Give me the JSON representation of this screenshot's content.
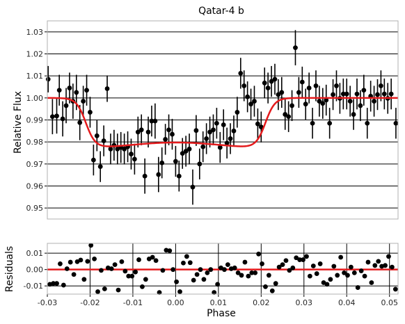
{
  "chart_data": [
    {
      "type": "scatter",
      "title": "Qatar-4 b",
      "xlabel": "",
      "ylabel": "Relative Flux",
      "xlim": [
        -0.03,
        0.052
      ],
      "ylim": [
        0.945,
        1.035
      ],
      "yticks": [
        0.95,
        0.96,
        0.97,
        0.98,
        0.99,
        1.0,
        1.01,
        1.02,
        1.03
      ],
      "ytick_labels": [
        "0.95",
        "0.96",
        "0.97",
        "0.98",
        "0.99",
        "1.00",
        "1.01",
        "1.02",
        "1.03"
      ],
      "grid": "horizontal",
      "points": [
        [
          -0.0298,
          1.0085,
          0.006
        ],
        [
          -0.0288,
          0.9915,
          0.008
        ],
        [
          -0.0278,
          0.9918,
          0.008
        ],
        [
          -0.0272,
          1.0035,
          0.007
        ],
        [
          -0.0264,
          0.9905,
          0.008
        ],
        [
          -0.0256,
          0.9965,
          0.008
        ],
        [
          -0.0248,
          1.0045,
          0.007
        ],
        [
          -0.024,
          0.9985,
          0.008
        ],
        [
          -0.0232,
          1.0025,
          0.008
        ],
        [
          -0.0224,
          0.9888,
          0.008
        ],
        [
          -0.0216,
          0.9985,
          0.007
        ],
        [
          -0.0208,
          1.0035,
          0.007
        ],
        [
          -0.02,
          0.9935,
          0.007
        ],
        [
          -0.0192,
          0.9718,
          0.007
        ],
        [
          -0.0184,
          0.9828,
          0.007
        ],
        [
          -0.0176,
          0.9688,
          0.007
        ],
        [
          -0.0168,
          0.9805,
          0.007
        ],
        [
          -0.016,
          1.0042,
          0.006
        ],
        [
          -0.0152,
          0.9768,
          0.007
        ],
        [
          -0.0144,
          0.9785,
          0.007
        ],
        [
          -0.0136,
          0.9768,
          0.007
        ],
        [
          -0.0128,
          0.9775,
          0.007
        ],
        [
          -0.012,
          0.9768,
          0.007
        ],
        [
          -0.0112,
          0.9778,
          0.007
        ],
        [
          -0.0104,
          0.9745,
          0.007
        ],
        [
          -0.0096,
          0.9722,
          0.007
        ],
        [
          -0.0088,
          0.9845,
          0.007
        ],
        [
          -0.008,
          0.9855,
          0.007
        ],
        [
          -0.0072,
          0.9645,
          0.008
        ],
        [
          -0.0064,
          0.9845,
          0.007
        ],
        [
          -0.0056,
          0.9895,
          0.007
        ],
        [
          -0.0048,
          0.9895,
          0.008
        ],
        [
          -0.004,
          0.9652,
          0.008
        ],
        [
          -0.0032,
          0.9705,
          0.007
        ],
        [
          -0.0024,
          0.9812,
          0.007
        ],
        [
          -0.0016,
          0.9855,
          0.007
        ],
        [
          -0.0008,
          0.9835,
          0.007
        ],
        [
          0.0,
          0.9712,
          0.007
        ],
        [
          0.0008,
          0.9645,
          0.007
        ],
        [
          0.0016,
          0.9748,
          0.007
        ],
        [
          0.0024,
          0.9758,
          0.007
        ],
        [
          0.0032,
          0.9768,
          0.007
        ],
        [
          0.004,
          0.9595,
          0.008
        ],
        [
          0.0048,
          0.9852,
          0.007
        ],
        [
          0.0056,
          0.97,
          0.007
        ],
        [
          0.0064,
          0.9778,
          0.007
        ],
        [
          0.0072,
          0.9815,
          0.007
        ],
        [
          0.008,
          0.9845,
          0.007
        ],
        [
          0.0088,
          0.9855,
          0.007
        ],
        [
          0.0096,
          0.9885,
          0.007
        ],
        [
          0.0104,
          0.9775,
          0.007
        ],
        [
          0.0112,
          0.9878,
          0.007
        ],
        [
          0.012,
          0.9795,
          0.007
        ],
        [
          0.0128,
          0.9815,
          0.007
        ],
        [
          0.0136,
          0.985,
          0.007
        ],
        [
          0.0144,
          0.9935,
          0.007
        ],
        [
          0.0152,
          1.0112,
          0.007
        ],
        [
          0.016,
          1.0055,
          0.007
        ],
        [
          0.0168,
          1.0005,
          0.007
        ],
        [
          0.0176,
          0.9972,
          0.007
        ],
        [
          0.0184,
          0.9985,
          0.007
        ],
        [
          0.0192,
          0.9882,
          0.007
        ],
        [
          0.02,
          0.9868,
          0.007
        ],
        [
          0.0208,
          1.0068,
          0.007
        ],
        [
          0.0216,
          1.0045,
          0.007
        ],
        [
          0.0224,
          1.0075,
          0.007
        ],
        [
          0.0232,
          1.0085,
          0.007
        ],
        [
          0.024,
          1.0015,
          0.007
        ],
        [
          0.0248,
          1.0025,
          0.007
        ],
        [
          0.0256,
          0.9925,
          0.007
        ],
        [
          0.0264,
          0.9915,
          0.007
        ],
        [
          0.0272,
          0.9965,
          0.007
        ],
        [
          0.028,
          1.0228,
          0.008
        ],
        [
          0.0288,
          1.0025,
          0.007
        ],
        [
          0.0296,
          1.0072,
          0.007
        ],
        [
          0.0304,
          0.9972,
          0.007
        ],
        [
          0.0312,
          1.0045,
          0.007
        ],
        [
          0.032,
          0.9885,
          0.007
        ],
        [
          0.0328,
          1.0055,
          0.007
        ],
        [
          0.0336,
          0.9985,
          0.007
        ],
        [
          0.0344,
          0.9975,
          0.007
        ],
        [
          0.0352,
          0.999,
          0.007
        ],
        [
          0.036,
          0.9885,
          0.007
        ],
        [
          0.0368,
          1.0015,
          0.007
        ],
        [
          0.0376,
          1.0055,
          0.007
        ],
        [
          0.0384,
          0.9998,
          0.007
        ],
        [
          0.0392,
          1.0018,
          0.007
        ],
        [
          0.04,
          1.0018,
          0.007
        ],
        [
          0.0408,
          0.9985,
          0.007
        ],
        [
          0.0416,
          0.9925,
          0.007
        ],
        [
          0.0424,
          1.0018,
          0.007
        ],
        [
          0.0432,
          0.9965,
          0.007
        ],
        [
          0.044,
          1.0035,
          0.007
        ],
        [
          0.0448,
          0.9885,
          0.007
        ],
        [
          0.0456,
          1.0008,
          0.007
        ],
        [
          0.0464,
          0.9985,
          0.007
        ],
        [
          0.0472,
          1.0015,
          0.007
        ],
        [
          0.048,
          1.0055,
          0.007
        ],
        [
          0.0488,
          1.0018,
          0.007
        ],
        [
          0.0496,
          0.9998,
          0.007
        ],
        [
          0.0504,
          1.0018,
          0.007
        ],
        [
          0.0515,
          0.9885,
          0.007
        ]
      ],
      "model": {
        "baseline": 1.0,
        "depth": 0.0225,
        "ingress_center": -0.021,
        "egress_center": 0.021,
        "edge_width": 0.0011,
        "color": "#e41a1c"
      },
      "point_color": "#000000"
    },
    {
      "type": "scatter",
      "title": "",
      "xlabel": "Phase",
      "ylabel": "Residuals",
      "xlim": [
        -0.03,
        0.052
      ],
      "ylim": [
        -0.015,
        0.016
      ],
      "yticks": [
        -0.01,
        0.0,
        0.01
      ],
      "ytick_labels": [
        "-0.01",
        "0.00",
        "0.01"
      ],
      "xticks": [
        -0.03,
        -0.02,
        -0.01,
        0.0,
        0.01,
        0.02,
        0.03,
        0.04,
        0.05
      ],
      "xtick_labels": [
        "-0.03",
        "-0.02",
        "-0.01",
        "0.00",
        "0.01",
        "0.02",
        "0.03",
        "0.04",
        "0.05"
      ],
      "grid": "both",
      "zero_line_color": "#e41a1c",
      "points": [
        [
          -0.0294,
          -0.009
        ],
        [
          -0.0286,
          -0.0085
        ],
        [
          -0.0278,
          -0.0085
        ],
        [
          -0.027,
          0.0035
        ],
        [
          -0.0262,
          -0.0095
        ],
        [
          -0.0254,
          0.0005
        ],
        [
          -0.0246,
          0.0045
        ],
        [
          -0.0238,
          -0.003
        ],
        [
          -0.023,
          0.0048
        ],
        [
          -0.0222,
          0.0058
        ],
        [
          -0.0214,
          -0.006
        ],
        [
          -0.0206,
          0.005
        ],
        [
          -0.0198,
          0.0148
        ],
        [
          -0.019,
          0.0065
        ],
        [
          -0.0182,
          -0.0135
        ],
        [
          -0.0174,
          -0.0005
        ],
        [
          -0.0166,
          -0.0118
        ],
        [
          -0.0158,
          0.001
        ],
        [
          -0.015,
          0.0005
        ],
        [
          -0.0142,
          0.003
        ],
        [
          -0.0134,
          -0.0125
        ],
        [
          -0.0126,
          0.0048
        ],
        [
          -0.0118,
          -0.001
        ],
        [
          -0.011,
          -0.004
        ],
        [
          -0.0102,
          -0.004
        ],
        [
          -0.0094,
          -0.0015
        ],
        [
          -0.0086,
          0.006
        ],
        [
          -0.0078,
          -0.0105
        ],
        [
          -0.007,
          -0.006
        ],
        [
          -0.0062,
          0.0065
        ],
        [
          -0.0054,
          0.0075
        ],
        [
          -0.0046,
          0.0055
        ],
        [
          -0.0038,
          -0.014
        ],
        [
          -0.003,
          -0.0005
        ],
        [
          -0.0022,
          0.0118
        ],
        [
          -0.0014,
          0.0115
        ],
        [
          -0.0006,
          0.0
        ],
        [
          0.0002,
          -0.0075
        ],
        [
          0.001,
          -0.0135
        ],
        [
          0.0018,
          0.004
        ],
        [
          0.0026,
          0.008
        ],
        [
          0.0034,
          0.0042
        ],
        [
          0.0042,
          -0.0065
        ],
        [
          0.005,
          -0.003
        ],
        [
          0.0058,
          0.0
        ],
        [
          0.0066,
          -0.006
        ],
        [
          0.0074,
          -0.002
        ],
        [
          0.0082,
          0.0
        ],
        [
          0.009,
          -0.014
        ],
        [
          0.0098,
          -0.009
        ],
        [
          0.0106,
          0.001
        ],
        [
          0.0114,
          0.0
        ],
        [
          0.0122,
          0.003
        ],
        [
          0.013,
          0.0005
        ],
        [
          0.0138,
          0.001
        ],
        [
          0.0146,
          -0.002
        ],
        [
          0.0154,
          -0.0035
        ],
        [
          0.0162,
          0.0045
        ],
        [
          0.017,
          -0.004
        ],
        [
          0.0178,
          -0.002
        ],
        [
          0.0186,
          -0.002
        ],
        [
          0.0194,
          0.0095
        ],
        [
          0.0202,
          0.0035
        ],
        [
          0.021,
          -0.0105
        ],
        [
          0.0218,
          -0.0035
        ],
        [
          0.0226,
          -0.013
        ],
        [
          0.0234,
          -0.0085
        ],
        [
          0.0242,
          0.0015
        ],
        [
          0.025,
          0.003
        ],
        [
          0.0258,
          0.0055
        ],
        [
          0.0266,
          -0.0005
        ],
        [
          0.0274,
          0.001
        ],
        [
          0.0282,
          0.0072
        ],
        [
          0.029,
          0.006
        ],
        [
          0.0298,
          0.006
        ],
        [
          0.0306,
          0.008
        ],
        [
          0.0314,
          -0.004
        ],
        [
          0.0322,
          0.0022
        ],
        [
          0.033,
          -0.0025
        ],
        [
          0.0338,
          0.0035
        ],
        [
          0.0346,
          -0.008
        ],
        [
          0.0354,
          -0.009
        ],
        [
          0.0362,
          -0.006
        ],
        [
          0.037,
          0.002
        ],
        [
          0.0378,
          -0.0035
        ],
        [
          0.0386,
          0.0075
        ],
        [
          0.0394,
          -0.002
        ],
        [
          0.0402,
          -0.0035
        ],
        [
          0.041,
          0.0015
        ],
        [
          0.0418,
          -0.002
        ],
        [
          0.0426,
          -0.011
        ],
        [
          0.0434,
          -0.0008
        ],
        [
          0.0442,
          -0.004
        ],
        [
          0.045,
          0.0045
        ],
        [
          0.0458,
          -0.008
        ],
        [
          0.0466,
          0.0025
        ],
        [
          0.0474,
          0.005
        ],
        [
          0.0482,
          0.002
        ],
        [
          0.049,
          0.0025
        ],
        [
          0.0498,
          0.008
        ],
        [
          0.0506,
          0.0015
        ],
        [
          0.0514,
          -0.012
        ]
      ],
      "point_color": "#000000"
    }
  ]
}
